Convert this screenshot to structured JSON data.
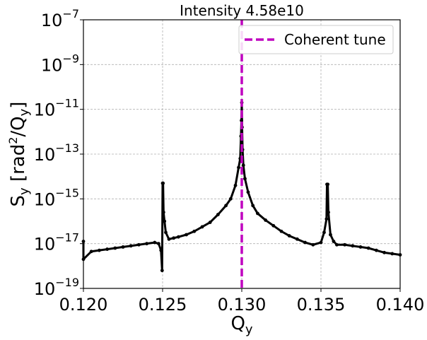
{
  "chart_data": {
    "type": "line",
    "title": "Intensity 4.58e10",
    "xlabel": {
      "main": "Q",
      "sub": "y"
    },
    "ylabel": {
      "s": "S",
      "s_sub": "y",
      "open": " [rad",
      "sup": "2",
      "slash": "/Q",
      "q_sub": "y",
      "close": "]"
    },
    "x_range": [
      0.12,
      0.14
    ],
    "y_log_range": [
      -19,
      -7
    ],
    "y_scale": "log",
    "grid": true,
    "x_ticks": [
      {
        "v": 0.12,
        "label": "0.120"
      },
      {
        "v": 0.125,
        "label": "0.125"
      },
      {
        "v": 0.13,
        "label": "0.130"
      },
      {
        "v": 0.135,
        "label": "0.135"
      },
      {
        "v": 0.14,
        "label": "0.140"
      }
    ],
    "y_ticks": [
      {
        "exp": -19,
        "base": "10",
        "label": "−19"
      },
      {
        "exp": -17,
        "base": "10",
        "label": "−17"
      },
      {
        "exp": -15,
        "base": "10",
        "label": "−15"
      },
      {
        "exp": -13,
        "base": "10",
        "label": "−13"
      },
      {
        "exp": -11,
        "base": "10",
        "label": "−11"
      },
      {
        "exp": -9,
        "base": "10",
        "label": "−9"
      },
      {
        "exp": -7,
        "base": "10",
        "label": "−7"
      }
    ],
    "legend": {
      "placement": "top-right",
      "entries": [
        {
          "label": "Coherent tune",
          "color": "#bf00bf",
          "style": "dashed"
        }
      ]
    },
    "coherent_tune": 0.13,
    "series": [
      {
        "color": "#000000",
        "marker": "circle",
        "points": [
          [
            0.12,
            -16.9
          ],
          [
            0.12,
            -17.7
          ],
          [
            0.1205,
            -17.35
          ],
          [
            0.121,
            -17.3
          ],
          [
            0.1215,
            -17.25
          ],
          [
            0.122,
            -17.2
          ],
          [
            0.1225,
            -17.15
          ],
          [
            0.123,
            -17.1
          ],
          [
            0.1235,
            -17.05
          ],
          [
            0.124,
            -17.0
          ],
          [
            0.1245,
            -16.95
          ],
          [
            0.12475,
            -17.0
          ],
          [
            0.1249,
            -17.3
          ],
          [
            0.12497,
            -18.2
          ],
          [
            0.125,
            -14.3
          ],
          [
            0.12503,
            -14.3
          ],
          [
            0.12506,
            -15.6
          ],
          [
            0.12512,
            -16.0
          ],
          [
            0.1252,
            -16.5
          ],
          [
            0.1254,
            -16.8
          ],
          [
            0.1257,
            -16.75
          ],
          [
            0.126,
            -16.7
          ],
          [
            0.1265,
            -16.6
          ],
          [
            0.127,
            -16.45
          ],
          [
            0.1275,
            -16.25
          ],
          [
            0.128,
            -16.05
          ],
          [
            0.1285,
            -15.7
          ],
          [
            0.129,
            -15.3
          ],
          [
            0.1293,
            -15.0
          ],
          [
            0.1296,
            -14.4
          ],
          [
            0.1298,
            -13.6
          ],
          [
            0.1299,
            -13.2
          ],
          [
            0.12995,
            -12.2
          ],
          [
            0.12998,
            -11.5
          ],
          [
            0.13,
            -10.7
          ],
          [
            0.13002,
            -11.8
          ],
          [
            0.13005,
            -12.8
          ],
          [
            0.1301,
            -13.5
          ],
          [
            0.1302,
            -14.1
          ],
          [
            0.1304,
            -14.7
          ],
          [
            0.1307,
            -15.3
          ],
          [
            0.131,
            -15.65
          ],
          [
            0.1315,
            -15.95
          ],
          [
            0.132,
            -16.2
          ],
          [
            0.1325,
            -16.45
          ],
          [
            0.133,
            -16.65
          ],
          [
            0.1335,
            -16.8
          ],
          [
            0.134,
            -16.95
          ],
          [
            0.1345,
            -17.05
          ],
          [
            0.135,
            -16.95
          ],
          [
            0.1352,
            -16.5
          ],
          [
            0.13535,
            -15.9
          ],
          [
            0.13538,
            -14.35
          ],
          [
            0.13543,
            -14.35
          ],
          [
            0.13547,
            -15.6
          ],
          [
            0.1356,
            -16.6
          ],
          [
            0.1358,
            -16.9
          ],
          [
            0.136,
            -17.05
          ],
          [
            0.1365,
            -17.05
          ],
          [
            0.137,
            -17.1
          ],
          [
            0.1375,
            -17.15
          ],
          [
            0.138,
            -17.2
          ],
          [
            0.1385,
            -17.3
          ],
          [
            0.139,
            -17.4
          ],
          [
            0.1395,
            -17.45
          ],
          [
            0.14,
            -17.5
          ]
        ]
      }
    ]
  }
}
